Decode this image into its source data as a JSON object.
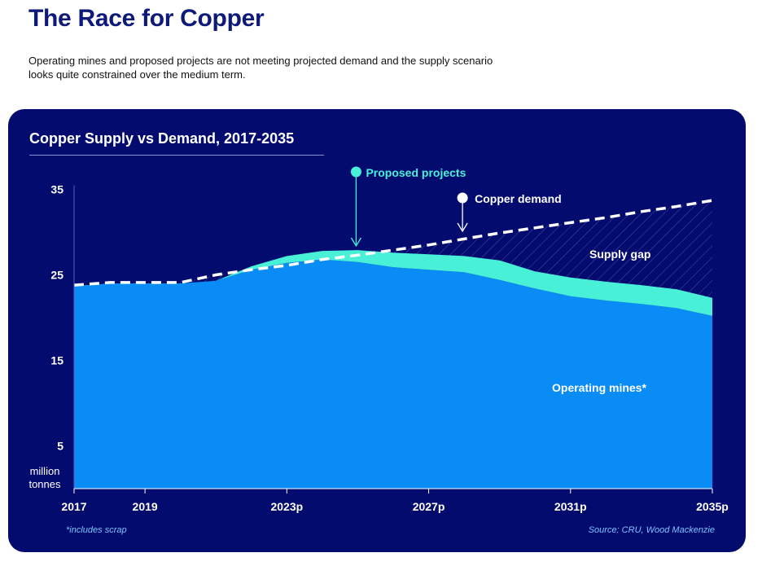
{
  "header": {
    "title": "The Race for Copper",
    "subtitle": "Operating mines and proposed projects are not meeting projected demand and the supply scenario looks quite constrained over the medium term."
  },
  "colors": {
    "panel": "#040b6e",
    "operating_mines": "#0a8cf7",
    "proposed_projects": "#48f0d8",
    "demand_line": "#ffffff",
    "supply_gap_hatch": "#7f86c9"
  },
  "chart_data": {
    "type": "area",
    "title": "Copper Supply vs Demand, 2017-2035",
    "ylabel": "million tonnes",
    "ylim": [
      0,
      35
    ],
    "yticks": [
      5,
      15,
      25,
      35
    ],
    "x": [
      2017,
      2018,
      2019,
      2020,
      2021,
      2022,
      2023,
      2024,
      2025,
      2026,
      2027,
      2028,
      2029,
      2030,
      2031,
      2032,
      2033,
      2034,
      2035
    ],
    "x_tick_labels": [
      {
        "x": 2017,
        "label": "2017"
      },
      {
        "x": 2019,
        "label": "2019"
      },
      {
        "x": 2023,
        "label": "2023p"
      },
      {
        "x": 2027,
        "label": "2027p"
      },
      {
        "x": 2031,
        "label": "2031p"
      },
      {
        "x": 2035,
        "label": "2035p"
      }
    ],
    "series": [
      {
        "name": "Operating mines*",
        "kind": "area",
        "values": [
          23.7,
          24.0,
          24.0,
          24.0,
          24.3,
          25.6,
          26.4,
          26.8,
          26.5,
          25.9,
          25.6,
          25.3,
          24.4,
          23.4,
          22.5,
          22.0,
          21.6,
          21.1,
          20.2
        ]
      },
      {
        "name": "Proposed projects",
        "kind": "area",
        "values": [
          0,
          0,
          0,
          0,
          0,
          0.4,
          0.8,
          1.0,
          1.4,
          1.7,
          1.8,
          1.9,
          2.3,
          2.0,
          2.2,
          2.2,
          2.2,
          2.2,
          2.1
        ]
      },
      {
        "name": "Copper demand",
        "kind": "line",
        "values": [
          23.8,
          24.1,
          24.1,
          24.1,
          25.0,
          25.6,
          26.1,
          26.8,
          27.3,
          27.9,
          28.5,
          29.2,
          29.9,
          30.5,
          31.1,
          31.7,
          32.4,
          33.0,
          33.7
        ]
      }
    ],
    "annotations": {
      "supply_gap": "Supply gap",
      "operating_mines": "Operating mines*",
      "proposed_projects": "Proposed projects",
      "copper_demand": "Copper demand"
    },
    "footnote": "*includes scrap",
    "source": "Source: CRU, Wood Mackenzie",
    "grid": false
  }
}
